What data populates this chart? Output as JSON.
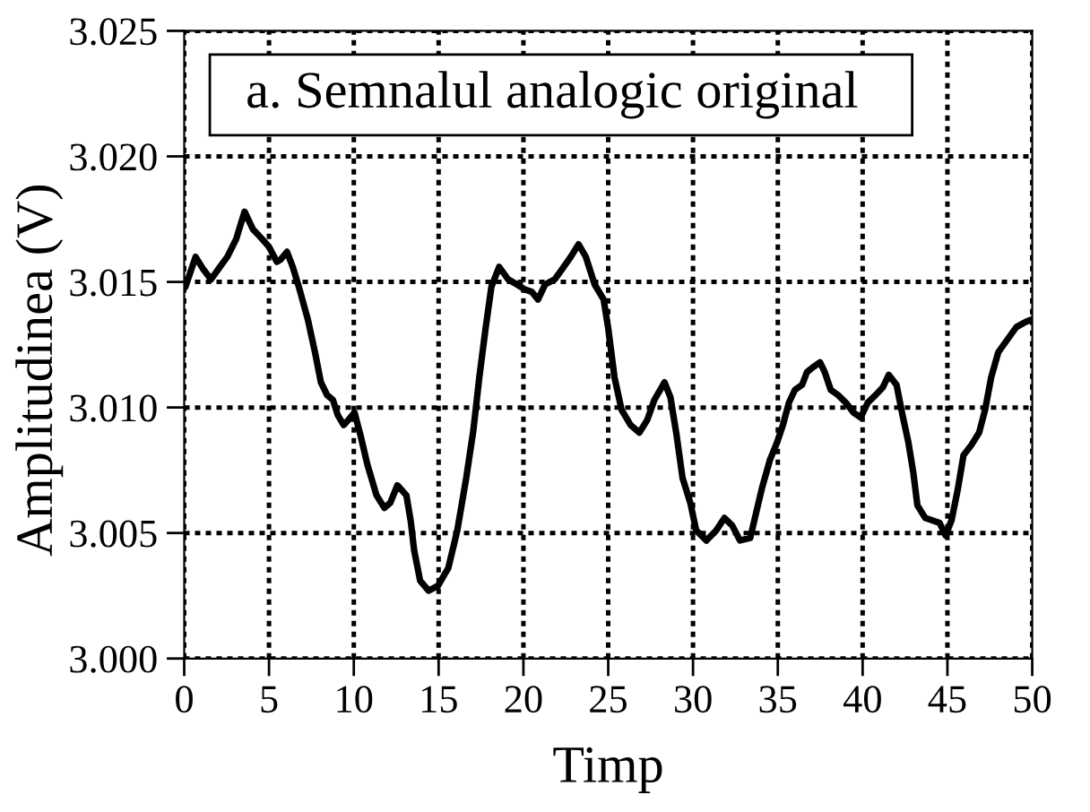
{
  "chart_data": {
    "type": "line",
    "xlabel": "Timp",
    "ylabel": "Amplitudinea (V)",
    "annotations": [
      "a. Semnalul analogic original"
    ],
    "x": [
      0.07,
      0.67,
      1.13,
      1.58,
      2.0,
      2.54,
      3.06,
      3.56,
      4.05,
      4.47,
      5.0,
      5.46,
      5.7,
      6.06,
      6.4,
      6.76,
      7.29,
      7.71,
      8.06,
      8.42,
      8.77,
      9.05,
      9.4,
      9.68,
      10.04,
      10.39,
      10.81,
      11.34,
      11.8,
      12.15,
      12.57,
      13.1,
      13.35,
      13.56,
      13.91,
      14.41,
      14.97,
      15.39,
      15.57,
      16.1,
      16.63,
      17.05,
      17.4,
      17.76,
      18.11,
      18.57,
      19.1,
      19.62,
      20.08,
      20.5,
      20.86,
      21.28,
      21.84,
      22.27,
      22.79,
      23.25,
      23.68,
      24.2,
      24.73,
      25.01,
      25.37,
      25.79,
      26.32,
      26.84,
      27.3,
      27.72,
      28.32,
      28.67,
      29.03,
      29.38,
      29.84,
      30.19,
      30.79,
      31.36,
      31.85,
      32.31,
      32.77,
      33.37,
      33.72,
      34.07,
      34.53,
      34.95,
      35.3,
      35.66,
      36.01,
      36.43,
      36.71,
      37.07,
      37.49,
      37.77,
      38.12,
      38.54,
      39.0,
      39.46,
      39.88,
      40.31,
      40.77,
      41.19,
      41.54,
      42.0,
      42.35,
      42.7,
      42.99,
      43.23,
      43.69,
      44.11,
      44.54,
      44.89,
      45.24,
      45.6,
      45.95,
      46.41,
      46.87,
      47.22,
      47.58,
      48.0,
      48.53,
      49.06,
      49.59,
      49.95
    ],
    "series": [
      {
        "color": "#000000",
        "values": [
          3.0148,
          3.016,
          3.0155,
          3.0151,
          3.0155,
          3.016,
          3.0167,
          3.0178,
          3.0171,
          3.0168,
          3.0164,
          3.0158,
          3.0159,
          3.0162,
          3.0156,
          3.0148,
          3.0135,
          3.0122,
          3.011,
          3.0105,
          3.0103,
          3.0097,
          3.0093,
          3.0095,
          3.0098,
          3.0089,
          3.0077,
          3.0065,
          3.006,
          3.0062,
          3.0069,
          3.0065,
          3.0055,
          3.0043,
          3.0031,
          3.0027,
          3.0029,
          3.0034,
          3.0036,
          3.0051,
          3.0072,
          3.0091,
          3.0112,
          3.0131,
          3.0148,
          3.0156,
          3.0151,
          3.0149,
          3.0147,
          3.0146,
          3.0143,
          3.0149,
          3.0151,
          3.0155,
          3.016,
          3.0165,
          3.016,
          3.0149,
          3.0143,
          3.0131,
          3.0112,
          3.0099,
          3.0093,
          3.009,
          3.0095,
          3.0103,
          3.011,
          3.0104,
          3.0089,
          3.0072,
          3.0062,
          3.0051,
          3.0047,
          3.0051,
          3.0056,
          3.0053,
          3.0047,
          3.0048,
          3.0058,
          3.0068,
          3.0079,
          3.0086,
          3.0093,
          3.0102,
          3.0107,
          3.0109,
          3.0114,
          3.0116,
          3.0118,
          3.0114,
          3.0107,
          3.0105,
          3.0102,
          3.0098,
          3.0096,
          3.0102,
          3.0105,
          3.0108,
          3.0113,
          3.0109,
          3.0097,
          3.0086,
          3.0074,
          3.0061,
          3.0056,
          3.0055,
          3.0054,
          3.0049,
          3.0055,
          3.0067,
          3.0081,
          3.0085,
          3.009,
          3.0099,
          3.0112,
          3.0122,
          3.0127,
          3.0132,
          3.0134,
          3.0135
        ]
      }
    ],
    "xlim": [
      0,
      50
    ],
    "xticks": [
      0,
      5,
      10,
      15,
      20,
      25,
      30,
      35,
      40,
      45,
      50
    ],
    "ylim": [
      3.0,
      3.025
    ],
    "yticks": [
      {
        "value": 3.0,
        "label": "3.000"
      },
      {
        "value": 3.005,
        "label": "3.005"
      },
      {
        "value": 3.01,
        "label": "3.010"
      },
      {
        "value": 3.015,
        "label": "3.015"
      },
      {
        "value": 3.02,
        "label": "3.020"
      },
      {
        "value": 3.025,
        "label": "3.025"
      }
    ],
    "grid": true,
    "marker": "none",
    "line_style": "solid"
  }
}
